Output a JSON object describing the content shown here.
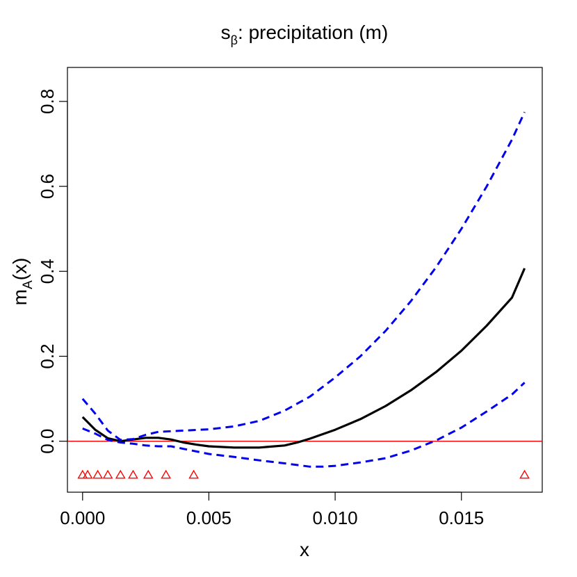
{
  "chart_data": {
    "type": "line",
    "title": {
      "main": "s",
      "sub": "β",
      "rest": ": precipitation (m)"
    },
    "xlabel": "x",
    "ylabel": {
      "main": "m",
      "sub": "A",
      "rest": "(x)"
    },
    "xlim": [
      -0.0006,
      0.0182
    ],
    "ylim": [
      -0.12,
      0.88
    ],
    "xticks": [
      0.0,
      0.005,
      0.01,
      0.015
    ],
    "xtick_labels": [
      "0.000",
      "0.005",
      "0.010",
      "0.015"
    ],
    "yticks": [
      0.0,
      0.2,
      0.4,
      0.6,
      0.8
    ],
    "ytick_labels": [
      "0.0",
      "0.2",
      "0.4",
      "0.6",
      "0.8"
    ],
    "grid": false,
    "reference_line": {
      "y": 0.0,
      "color": "#ff0000"
    },
    "series": [
      {
        "role": "estimate",
        "color": "#000000",
        "dash": "solid",
        "x": [
          0.0,
          0.0005,
          0.001,
          0.0015,
          0.002,
          0.0025,
          0.003,
          0.0035,
          0.004,
          0.0045,
          0.005,
          0.006,
          0.007,
          0.008,
          0.0085,
          0.009,
          0.01,
          0.011,
          0.012,
          0.013,
          0.014,
          0.015,
          0.016,
          0.017,
          0.0175
        ],
        "y": [
          0.057,
          0.027,
          0.007,
          0.0,
          0.004,
          0.008,
          0.008,
          0.004,
          -0.003,
          -0.008,
          -0.012,
          -0.015,
          -0.015,
          -0.01,
          -0.003,
          0.006,
          0.027,
          0.052,
          0.083,
          0.12,
          0.163,
          0.213,
          0.272,
          0.338,
          0.407
        ]
      },
      {
        "role": "upper",
        "color": "#0000ee",
        "dash": "dashed",
        "x": [
          0.0,
          0.0005,
          0.001,
          0.0015,
          0.002,
          0.0025,
          0.003,
          0.004,
          0.005,
          0.006,
          0.007,
          0.008,
          0.009,
          0.01,
          0.011,
          0.012,
          0.013,
          0.014,
          0.015,
          0.016,
          0.017,
          0.0175
        ],
        "y": [
          0.1,
          0.065,
          0.025,
          0.003,
          0.005,
          0.015,
          0.022,
          0.025,
          0.028,
          0.035,
          0.048,
          0.072,
          0.105,
          0.15,
          0.2,
          0.26,
          0.33,
          0.41,
          0.5,
          0.6,
          0.71,
          0.775
        ]
      },
      {
        "role": "lower",
        "color": "#0000ee",
        "dash": "dashed",
        "x": [
          0.0,
          0.0005,
          0.001,
          0.0015,
          0.002,
          0.0025,
          0.003,
          0.0035,
          0.004,
          0.005,
          0.006,
          0.007,
          0.008,
          0.009,
          0.0095,
          0.01,
          0.011,
          0.012,
          0.013,
          0.014,
          0.015,
          0.016,
          0.017,
          0.0175
        ],
        "y": [
          0.03,
          0.018,
          0.003,
          -0.003,
          -0.006,
          -0.01,
          -0.012,
          -0.012,
          -0.018,
          -0.03,
          -0.037,
          -0.045,
          -0.052,
          -0.06,
          -0.06,
          -0.058,
          -0.05,
          -0.04,
          -0.022,
          0.002,
          0.032,
          0.07,
          0.11,
          0.138
        ]
      }
    ],
    "markers": {
      "shape": "triangle-open",
      "color": "#ff0000",
      "y": -0.08,
      "x": [
        0.0,
        0.0002,
        0.0006,
        0.001,
        0.0015,
        0.002,
        0.0026,
        0.0033,
        0.0044,
        0.0175
      ]
    }
  }
}
